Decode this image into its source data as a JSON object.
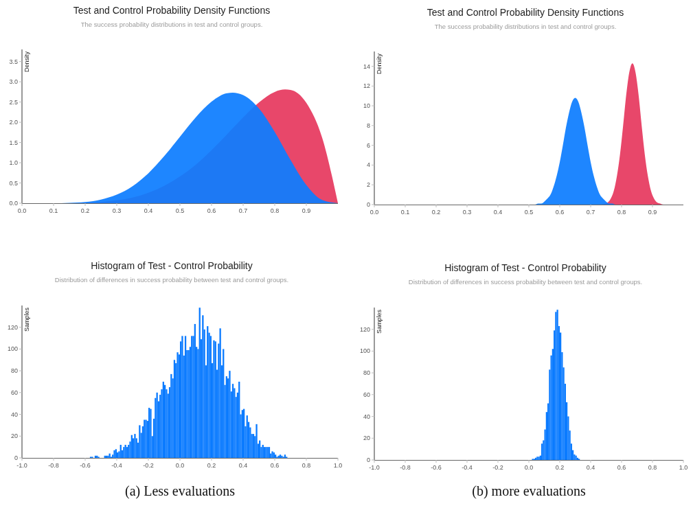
{
  "chart_data": [
    {
      "type": "area",
      "title": "Test and Control Probability Density Functions",
      "subtitle": "The success probability distributions in test and control groups.",
      "ylabel": "Density",
      "xlim": [
        0,
        1
      ],
      "ylim": [
        0,
        3.8
      ],
      "xticks": [
        {
          "value": 0,
          "label": "0.0"
        },
        {
          "value": 0.1,
          "label": "0.1"
        },
        {
          "value": 0.2,
          "label": "0.2"
        },
        {
          "value": 0.3,
          "label": "0.3"
        },
        {
          "value": 0.4,
          "label": "0.4"
        },
        {
          "value": 0.5,
          "label": "0.5"
        },
        {
          "value": 0.6,
          "label": "0.6"
        },
        {
          "value": 0.7,
          "label": "0.7"
        },
        {
          "value": 0.8,
          "label": "0.8"
        },
        {
          "value": 0.9,
          "label": "0.9"
        }
      ],
      "yticks": [
        {
          "value": 0,
          "label": "0.0"
        },
        {
          "value": 0.5,
          "label": "0.5"
        },
        {
          "value": 1,
          "label": "1.0"
        },
        {
          "value": 1.5,
          "label": "1.5"
        },
        {
          "value": 2,
          "label": "2.0"
        },
        {
          "value": 2.5,
          "label": "2.5"
        },
        {
          "value": 3,
          "label": "3.0"
        },
        {
          "value": 3.5,
          "label": "3.5"
        }
      ],
      "series": [
        {
          "color": "#e8476a",
          "x": [
            0,
            0.05,
            0.1,
            0.15,
            0.2,
            0.25,
            0.3,
            0.35,
            0.4,
            0.45,
            0.5,
            0.55,
            0.6,
            0.65,
            0.7,
            0.75,
            0.8,
            0.833,
            0.85,
            0.9,
            0.95,
            1
          ],
          "values": [
            0,
            0,
            0,
            0,
            0.01,
            0.03,
            0.07,
            0.14,
            0.26,
            0.43,
            0.66,
            0.95,
            1.31,
            1.71,
            2.12,
            2.49,
            2.75,
            2.81,
            2.8,
            2.48,
            1.62,
            0
          ]
        },
        {
          "color": "#0d7dff",
          "x": [
            0,
            0.05,
            0.1,
            0.15,
            0.2,
            0.25,
            0.3,
            0.35,
            0.4,
            0.45,
            0.5,
            0.55,
            0.6,
            0.65,
            0.667,
            0.7,
            0.75,
            0.8,
            0.85,
            0.9,
            0.95,
            1
          ],
          "values": [
            0,
            0,
            0,
            0.01,
            0.03,
            0.09,
            0.21,
            0.42,
            0.74,
            1.16,
            1.64,
            2.12,
            2.51,
            2.72,
            2.73,
            2.67,
            2.34,
            1.76,
            1.07,
            0.45,
            0.08,
            0
          ]
        }
      ]
    },
    {
      "type": "area",
      "title": "Test and Control Probability Density Functions",
      "subtitle": "The success probability distributions in test and control groups.",
      "ylabel": "Density",
      "xlim": [
        0,
        1
      ],
      "ylim": [
        0,
        15.5
      ],
      "xticks": [
        {
          "value": 0,
          "label": "0.0"
        },
        {
          "value": 0.1,
          "label": "0.1"
        },
        {
          "value": 0.2,
          "label": "0.2"
        },
        {
          "value": 0.3,
          "label": "0.3"
        },
        {
          "value": 0.4,
          "label": "0.4"
        },
        {
          "value": 0.5,
          "label": "0.5"
        },
        {
          "value": 0.6,
          "label": "0.6"
        },
        {
          "value": 0.7,
          "label": "0.7"
        },
        {
          "value": 0.8,
          "label": "0.8"
        },
        {
          "value": 0.9,
          "label": "0.9"
        }
      ],
      "yticks": [
        0,
        2,
        4,
        6,
        8,
        10,
        12,
        14
      ],
      "series": [
        {
          "color": "#e8476a",
          "x": [
            0,
            0.735,
            0.745,
            0.755,
            0.765,
            0.775,
            0.785,
            0.795,
            0.805,
            0.815,
            0.825,
            0.835,
            0.845,
            0.855,
            0.865,
            0.875,
            0.885,
            0.895,
            0.905,
            0.915,
            0.925,
            0.935,
            1
          ],
          "values": [
            0,
            0,
            0.1,
            0.2,
            0.6,
            1.4,
            2.9,
            5.1,
            8,
            11.1,
            13.4,
            14.3,
            13.4,
            11.1,
            8,
            5.1,
            2.9,
            1.4,
            0.6,
            0.2,
            0.1,
            0,
            0
          ]
        },
        {
          "color": "#0d7dff",
          "x": [
            0,
            0.52,
            0.53,
            0.54,
            0.55,
            0.56,
            0.57,
            0.58,
            0.59,
            0.6,
            0.61,
            0.62,
            0.63,
            0.64,
            0.65,
            0.66,
            0.67,
            0.68,
            0.69,
            0.7,
            0.71,
            0.72,
            0.73,
            0.74,
            0.75,
            0.76,
            0.77,
            0.78,
            1
          ],
          "values": [
            0,
            0,
            0.1,
            0.1,
            0.3,
            0.6,
            1,
            1.8,
            2.9,
            4.3,
            6,
            7.8,
            9.3,
            10.4,
            10.8,
            10.4,
            9.3,
            7.8,
            6,
            4.3,
            2.9,
            1.8,
            1,
            0.6,
            0.3,
            0.1,
            0.1,
            0,
            0
          ]
        }
      ]
    },
    {
      "type": "histogram",
      "title": "Histogram of Test - Control Probability",
      "subtitle": "Distribution of differences in success probability between test and control groups.",
      "ylabel": "Samples",
      "xlim": [
        -1,
        1
      ],
      "ylim": [
        0,
        140
      ],
      "color": "#0b7bff",
      "xticks": [
        {
          "value": -1,
          "label": "-1.0"
        },
        {
          "value": -0.8,
          "label": "-0.8"
        },
        {
          "value": -0.6,
          "label": "-0.6"
        },
        {
          "value": -0.4,
          "label": "-0.4"
        },
        {
          "value": -0.2,
          "label": "-0.2"
        },
        {
          "value": 0,
          "label": "0.0"
        },
        {
          "value": 0.2,
          "label": "0.2"
        },
        {
          "value": 0.4,
          "label": "0.4"
        },
        {
          "value": 0.6,
          "label": "0.6"
        },
        {
          "value": 0.8,
          "label": "0.8"
        },
        {
          "value": 1,
          "label": "1.0"
        }
      ],
      "yticks": [
        0,
        20,
        40,
        60,
        80,
        100,
        120
      ],
      "bins": [
        -0.57,
        -0.56,
        -0.55,
        -0.54,
        -0.53,
        -0.52,
        -0.51,
        -0.5,
        -0.49,
        -0.48,
        -0.47,
        -0.46,
        -0.45,
        -0.44,
        -0.43,
        -0.42,
        -0.41,
        -0.4,
        -0.39,
        -0.38,
        -0.37,
        -0.36,
        -0.35,
        -0.34,
        -0.33,
        -0.32,
        -0.31,
        -0.3,
        -0.29,
        -0.28,
        -0.27,
        -0.26,
        -0.25,
        -0.24,
        -0.23,
        -0.22,
        -0.21,
        -0.2,
        -0.19,
        -0.18,
        -0.17,
        -0.16,
        -0.15,
        -0.14,
        -0.13,
        -0.12,
        -0.11,
        -0.1,
        -0.09,
        -0.08,
        -0.07,
        -0.06,
        -0.05,
        -0.04,
        -0.03,
        -0.02,
        -0.01,
        0,
        0.01,
        0.02,
        0.03,
        0.04,
        0.05,
        0.06,
        0.07,
        0.08,
        0.09,
        0.1,
        0.11,
        0.12,
        0.13,
        0.14,
        0.15,
        0.16,
        0.17,
        0.18,
        0.19,
        0.2,
        0.21,
        0.22,
        0.23,
        0.24,
        0.25,
        0.26,
        0.27,
        0.28,
        0.29,
        0.3,
        0.31,
        0.32,
        0.33,
        0.34,
        0.35,
        0.36,
        0.37,
        0.38,
        0.39,
        0.4,
        0.41,
        0.42,
        0.43,
        0.44,
        0.45,
        0.46,
        0.47,
        0.48,
        0.49,
        0.5,
        0.51,
        0.52,
        0.53,
        0.54,
        0.55,
        0.56,
        0.57,
        0.58,
        0.59,
        0.6,
        0.61,
        0.62,
        0.63,
        0.64,
        0.65,
        0.66,
        0.67,
        0.68
      ],
      "values": [
        1,
        1,
        0,
        2,
        2,
        1,
        0,
        0,
        0,
        2,
        2,
        2,
        4,
        1,
        3,
        7,
        8,
        5,
        6,
        12,
        7,
        10,
        12,
        10,
        12,
        15,
        21,
        18,
        22,
        18,
        14,
        30,
        23,
        29,
        35,
        35,
        34,
        46,
        45,
        20,
        36,
        55,
        60,
        52,
        58,
        63,
        70,
        67,
        63,
        59,
        65,
        77,
        73,
        90,
        87,
        97,
        95,
        107,
        112,
        94,
        112,
        99,
        99,
        102,
        112,
        112,
        123,
        102,
        100,
        138,
        109,
        131,
        118,
        85,
        121,
        115,
        112,
        87,
        108,
        107,
        81,
        105,
        119,
        85,
        100,
        67,
        75,
        73,
        80,
        61,
        68,
        64,
        56,
        60,
        70,
        40,
        44,
        45,
        29,
        39,
        33,
        28,
        22,
        22,
        20,
        31,
        13,
        16,
        10,
        12,
        10,
        10,
        10,
        10,
        4,
        6,
        5,
        3,
        1,
        2,
        3,
        2,
        1,
        3,
        1
      ],
      "annotations": [
        "(a) Less evaluations"
      ]
    },
    {
      "type": "histogram",
      "title": "Histogram of Test - Control Probability",
      "subtitle": "Distribution of differences in success probability between test and control groups.",
      "ylabel": "Samples",
      "xlim": [
        -1,
        1
      ],
      "ylim": [
        0,
        140
      ],
      "color": "#0b7bff",
      "xticks": [
        {
          "value": -1,
          "label": "-1.0"
        },
        {
          "value": -0.8,
          "label": "-0.8"
        },
        {
          "value": -0.6,
          "label": "-0.6"
        },
        {
          "value": -0.4,
          "label": "-0.4"
        },
        {
          "value": -0.2,
          "label": "-0.2"
        },
        {
          "value": 0,
          "label": "0.0"
        },
        {
          "value": 0.2,
          "label": "0.2"
        },
        {
          "value": 0.4,
          "label": "0.4"
        },
        {
          "value": 0.6,
          "label": "0.6"
        },
        {
          "value": 0.8,
          "label": "0.8"
        },
        {
          "value": 1,
          "label": "1.0"
        }
      ],
      "yticks": [
        0,
        20,
        40,
        60,
        80,
        100,
        120
      ],
      "bins": [
        0.02,
        0.03,
        0.04,
        0.05,
        0.06,
        0.07,
        0.08,
        0.09,
        0.1,
        0.11,
        0.12,
        0.13,
        0.14,
        0.15,
        0.16,
        0.17,
        0.18,
        0.19,
        0.2,
        0.21,
        0.22,
        0.23,
        0.24,
        0.25,
        0.26,
        0.27,
        0.28,
        0.29,
        0.3,
        0.31,
        0.32,
        0.33
      ],
      "values": [
        1,
        1,
        2,
        3,
        3,
        4,
        15,
        18,
        28,
        44,
        52,
        83,
        96,
        102,
        119,
        136,
        138,
        123,
        117,
        99,
        85,
        70,
        53,
        40,
        27,
        15,
        9,
        5,
        4,
        2,
        1
      ],
      "annotations": [
        "(b) more evaluations"
      ]
    }
  ]
}
